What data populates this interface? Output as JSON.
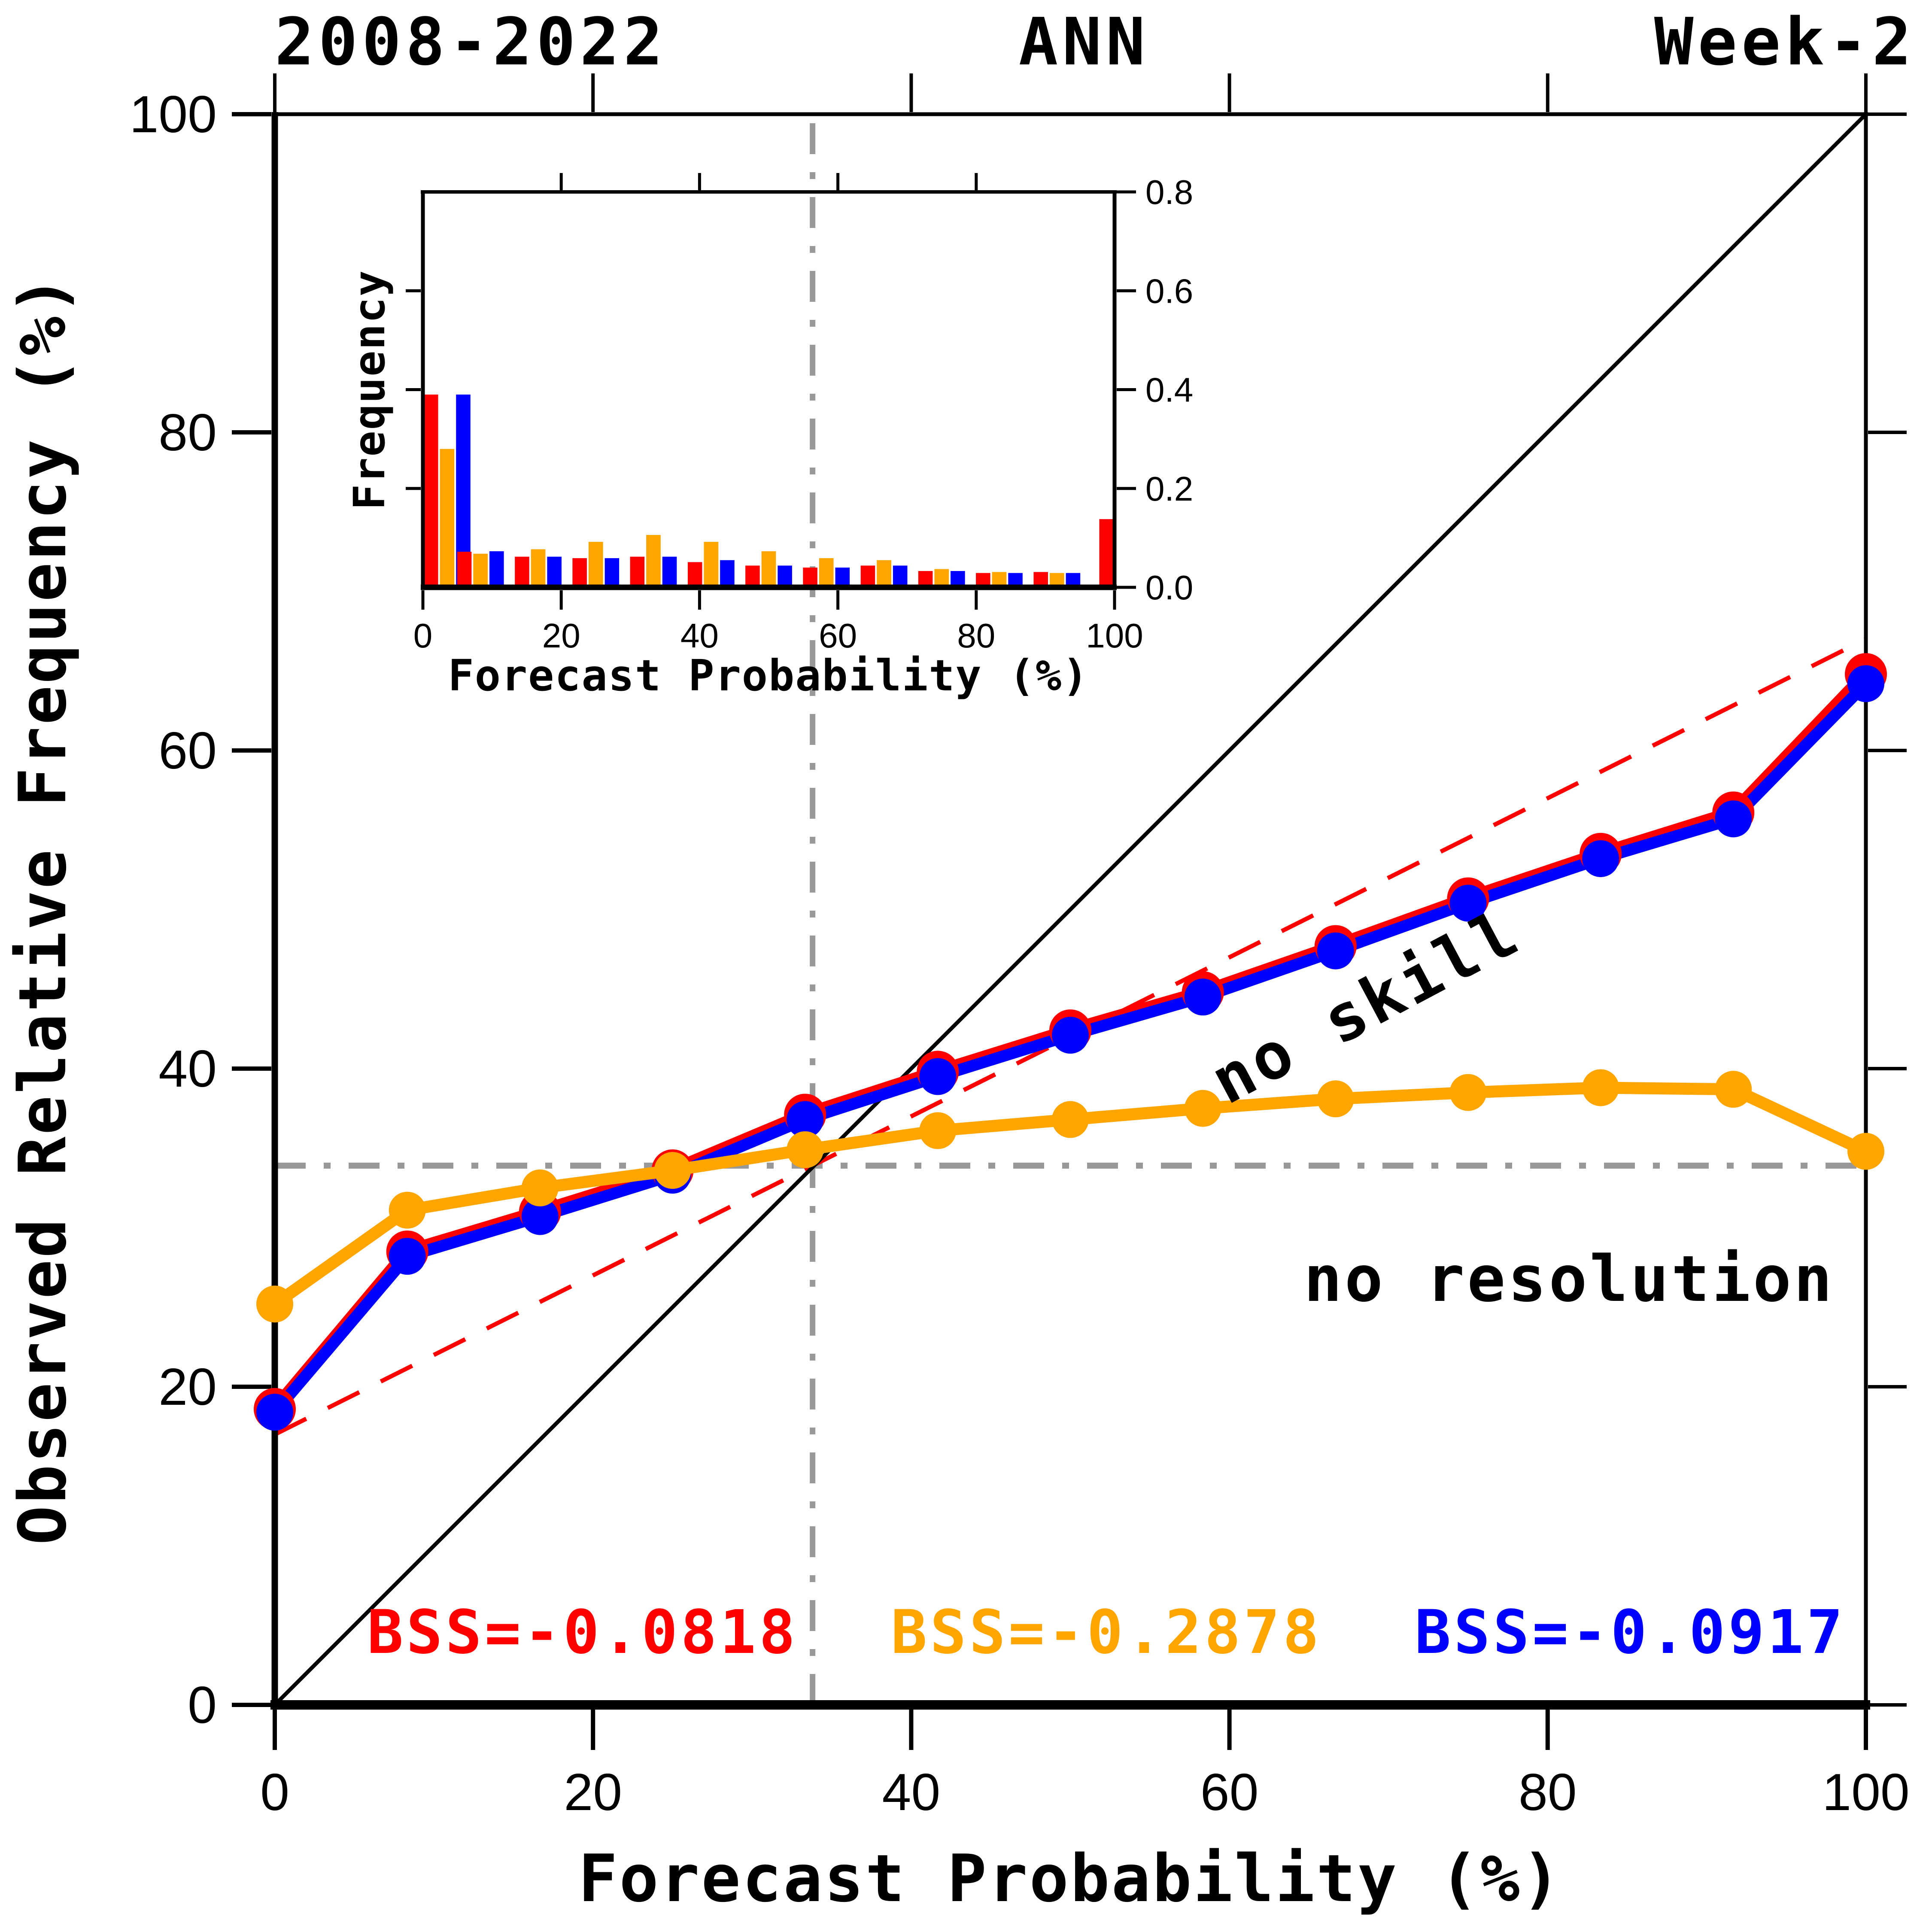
{
  "titles": {
    "left": "2008-2022",
    "center": "ANN",
    "right": "Week-2"
  },
  "colors": {
    "red": "#FF0000",
    "orange": "#FFA500",
    "blue": "#0000FF",
    "gray": "#999999",
    "black": "#000000",
    "no_skill_line": "#FF0000"
  },
  "annotations": {
    "no_skill": "no skill",
    "no_resolution": "no resolution",
    "bss": [
      {
        "label": "BSS=-0.0818",
        "series": "red"
      },
      {
        "label": "BSS=-0.2878",
        "series": "orange"
      },
      {
        "label": "BSS=-0.0917",
        "series": "blue"
      }
    ]
  },
  "chart_data": [
    {
      "type": "line",
      "title": "Reliability diagram",
      "xlabel": "Forecast Probability (%)",
      "ylabel": "Observed Relative Frequency (%)",
      "xlim": [
        0,
        100
      ],
      "ylim": [
        0,
        100
      ],
      "xticks": [
        0,
        20,
        40,
        60,
        80,
        100
      ],
      "yticks": [
        0,
        20,
        40,
        60,
        80,
        100
      ],
      "grid": false,
      "x": [
        0,
        8.33,
        16.67,
        25,
        33.33,
        41.67,
        50,
        58.33,
        66.67,
        75,
        83.33,
        91.67,
        100
      ],
      "series": [
        {
          "name": "red",
          "color": "#FF0000",
          "values": [
            18.6,
            28.5,
            31.0,
            33.6,
            37.1,
            39.8,
            42.4,
            44.8,
            47.7,
            50.7,
            53.5,
            56.1,
            64.8
          ]
        },
        {
          "name": "blue",
          "color": "#0000FF",
          "values": [
            18.4,
            28.2,
            30.7,
            33.3,
            36.8,
            39.5,
            42.1,
            44.5,
            47.4,
            50.4,
            53.2,
            55.7,
            64.2
          ]
        },
        {
          "name": "orange",
          "color": "#FFA500",
          "values": [
            25.2,
            31.1,
            32.5,
            33.6,
            34.9,
            36.1,
            36.8,
            37.5,
            38.1,
            38.5,
            38.8,
            38.7,
            34.8
          ]
        }
      ],
      "reference_lines": {
        "diagonal": {
          "from": [
            0,
            0
          ],
          "to": [
            100,
            100
          ]
        },
        "no_skill": {
          "from": [
            0,
            17
          ],
          "to": [
            100,
            67
          ]
        },
        "climatology_x": 33.8,
        "climatology_y": 33.9
      }
    },
    {
      "type": "bar",
      "title": "Forecast probability histogram (inset)",
      "xlabel": "Forecast Probability (%)",
      "ylabel": "Frequency",
      "xlim": [
        0,
        100
      ],
      "ylim": [
        0,
        0.8
      ],
      "xticks": [
        0,
        20,
        40,
        60,
        80,
        100
      ],
      "yticks": [
        0.0,
        0.2,
        0.4,
        0.6,
        0.8
      ],
      "categories": [
        0,
        8.33,
        16.67,
        25,
        33.33,
        41.67,
        50,
        58.33,
        66.67,
        75,
        83.33,
        91.67,
        100
      ],
      "series": [
        {
          "name": "red",
          "color": "#FF0000",
          "values": [
            0.39,
            0.072,
            0.062,
            0.059,
            0.062,
            0.051,
            0.044,
            0.04,
            0.044,
            0.033,
            0.029,
            0.031,
            0.138
          ]
        },
        {
          "name": "orange",
          "color": "#FFA500",
          "values": [
            0.28,
            0.068,
            0.077,
            0.092,
            0.106,
            0.092,
            0.073,
            0.059,
            0.055,
            0.037,
            0.031,
            0.029,
            0
          ]
        },
        {
          "name": "blue",
          "color": "#0000FF",
          "values": [
            0.39,
            0.073,
            0.062,
            0.059,
            0.062,
            0.055,
            0.044,
            0.04,
            0.044,
            0.033,
            0.029,
            0.029,
            0
          ]
        }
      ]
    }
  ]
}
